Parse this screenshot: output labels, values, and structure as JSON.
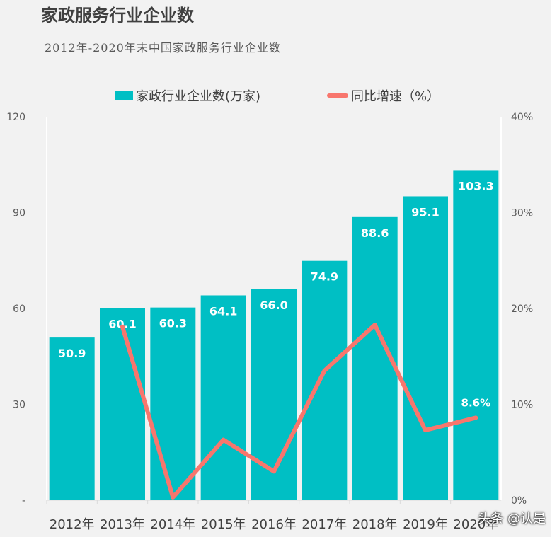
{
  "title": "家政服务行业企业数",
  "subtitle": "2012年-2020年末中国家政服务行业企业数",
  "watermark": "头条 @认是",
  "chart_data": {
    "type": "bar+line",
    "categories": [
      "2012年",
      "2013年",
      "2014年",
      "2015年",
      "2016年",
      "2017年",
      "2018年",
      "2019年",
      "2020年"
    ],
    "series": [
      {
        "name": "家政行业企业数(万家)",
        "type": "bar",
        "axis": "left",
        "color": "#00BFC4",
        "values": [
          50.9,
          60.1,
          60.3,
          64.1,
          66.0,
          74.9,
          88.6,
          95.1,
          103.3
        ],
        "labels": [
          "50.9",
          "60.1",
          "60.3",
          "64.1",
          "66.0",
          "74.9",
          "88.6",
          "95.1",
          "103.3"
        ]
      },
      {
        "name": "同比增速（%）",
        "type": "line",
        "axis": "right",
        "color": "#F8766D",
        "values": [
          null,
          18.1,
          0.3,
          6.3,
          3.0,
          13.5,
          18.3,
          7.3,
          8.6
        ],
        "labels": [
          null,
          null,
          null,
          null,
          null,
          null,
          null,
          null,
          "8.6%"
        ]
      }
    ],
    "left_axis": {
      "range": [
        0,
        120
      ],
      "ticks": [
        "-",
        "30",
        "60",
        "90",
        "120"
      ]
    },
    "right_axis": {
      "range": [
        0,
        40
      ],
      "ticks": [
        "0%",
        "10%",
        "20%",
        "30%",
        "40%"
      ]
    },
    "grid": false,
    "legend": "top"
  }
}
